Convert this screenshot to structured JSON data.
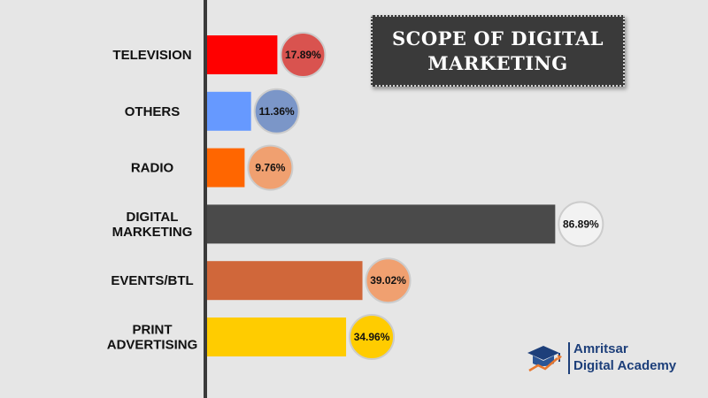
{
  "chart_data": {
    "type": "bar",
    "orientation": "horizontal",
    "title": "SCOPE OF DIGITAL MARKETING",
    "categories": [
      "TELEVISION",
      "OTHERS",
      "RADIO",
      "DIGITAL MARKETING",
      "EVENTS/BTL",
      "PRINT ADVERTISING"
    ],
    "category_lines": [
      [
        "TELEVISION"
      ],
      [
        "OTHERS"
      ],
      [
        "RADIO"
      ],
      [
        "DIGITAL",
        "MARKETING"
      ],
      [
        "EVENTS/BTL"
      ],
      [
        "PRINT",
        "ADVERTISING"
      ]
    ],
    "values": [
      17.89,
      11.36,
      9.76,
      86.89,
      39.02,
      34.96
    ],
    "value_labels": [
      "17.89%",
      "11.36%",
      "9.76%",
      "86.89%",
      "39.02%",
      "34.96%"
    ],
    "bar_colors": [
      "#ff0000",
      "#6699ff",
      "#ff6600",
      "#4a4a4a",
      "#d0673a",
      "#ffcc00"
    ],
    "badge_colors": [
      "#d9534f",
      "#7b96c8",
      "#f0a070",
      "#f2f2f2",
      "#f0a070",
      "#ffcc00"
    ],
    "xlim": [
      0,
      100
    ],
    "grid": false,
    "legend": "none"
  },
  "logo": {
    "line1": "Amritsar",
    "line2": "Digital Academy",
    "icon": "graduation-cap-icon",
    "color": "#1d3f7a",
    "accent": "#e8772e"
  }
}
